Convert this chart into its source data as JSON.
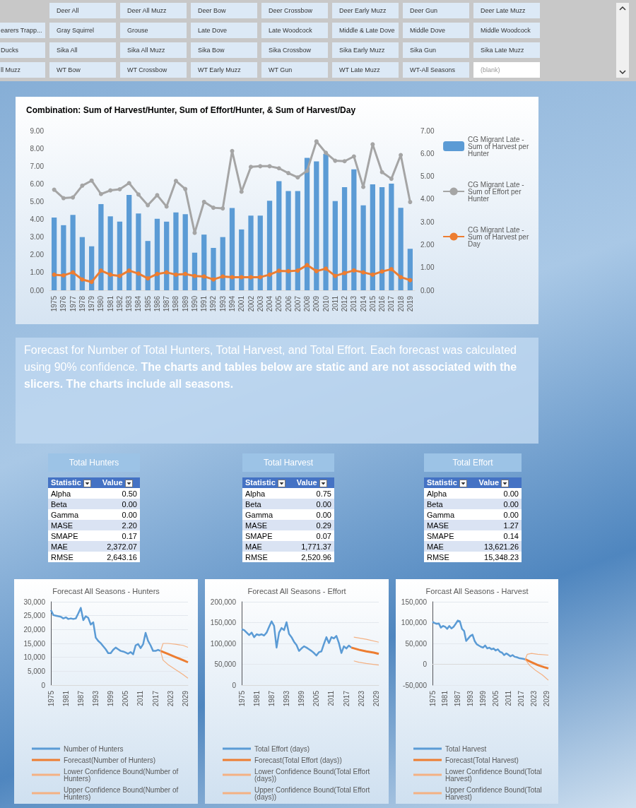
{
  "chart_data": [
    {
      "type": "other",
      "annotations": [
        "Deer All",
        "Deer All Muzz",
        "Deer Bow",
        "Deer Crossbow",
        "Deer Early Muzz",
        "Deer Gun",
        "Deer Late Muzz",
        "earers Trapp...",
        "Gray Squirrel",
        "Grouse",
        "Late Dove",
        "Late Woodcock",
        "Middle & Late Dove",
        "Middle Dove",
        "Middle Woodcock",
        "Ducks",
        "Sika All",
        "Sika All Muzz",
        "Sika Bow",
        "Sika Crossbow",
        "Sika Early Muzz",
        "Sika Gun",
        "Sika Late Muzz",
        "ll Muzz",
        "WT Bow",
        "WT Crossbow",
        "WT Early Muzz",
        "WT Gun",
        "WT Late Muzz",
        "WT-All Seasons",
        "(blank)"
      ]
    },
    {
      "type": "bar",
      "title": "Combination: Sum of Harvest/Hunter, Sum of Effort/Hunter, & Sum of Harvest/Day",
      "categories": [
        "1975",
        "1976",
        "1977",
        "1978",
        "1979",
        "1980",
        "1981",
        "1982",
        "1983",
        "1984",
        "1985",
        "1986",
        "1987",
        "1988",
        "1989",
        "1990",
        "1991",
        "1992",
        "1993",
        "1994",
        "2001",
        "2002",
        "2003",
        "2004",
        "2005",
        "2006",
        "2007",
        "2008",
        "2009",
        "2010",
        "2011",
        "2012",
        "2013",
        "2014",
        "2015",
        "2016",
        "2017",
        "2018",
        "2019"
      ],
      "series": [
        {
          "name": "CG Migrant Late - Sum of Harvest per Hunter",
          "type": "bar",
          "color": "#5b9bd5",
          "values": [
            4.1,
            3.67,
            4.25,
            3.0,
            2.48,
            4.86,
            4.17,
            3.87,
            5.38,
            4.33,
            2.78,
            4.03,
            3.87,
            4.39,
            4.29,
            2.12,
            3.14,
            2.39,
            3.0,
            4.64,
            3.43,
            4.21,
            4.21,
            5.05,
            6.15,
            5.6,
            5.6,
            7.47,
            7.27,
            7.69,
            5.03,
            5.81,
            6.82,
            4.79,
            5.97,
            5.81,
            6.01,
            4.65,
            2.34
          ]
        },
        {
          "name": "CG Migrant Late - Sum of Effort per Hunter",
          "type": "line",
          "axis": "y2",
          "marker": "circle",
          "color": "#a5a5a5",
          "values": [
            4.41,
            4.04,
            4.07,
            4.59,
            4.81,
            4.22,
            4.38,
            4.43,
            4.7,
            4.2,
            3.73,
            4.17,
            3.67,
            4.8,
            4.44,
            2.52,
            3.88,
            3.62,
            3.59,
            6.11,
            4.32,
            5.41,
            5.44,
            5.44,
            5.35,
            5.14,
            4.95,
            5.24,
            6.53,
            6.03,
            5.68,
            5.66,
            5.87,
            4.53,
            6.4,
            5.18,
            4.89,
            5.93,
            3.87
          ]
        },
        {
          "name": "CG Migrant Late - Sum of Harvest per Day",
          "type": "line",
          "marker": "circle",
          "color": "#ed7d31",
          "values": [
            0.88,
            0.84,
            1.01,
            0.61,
            0.47,
            1.11,
            0.88,
            0.81,
            1.11,
            0.94,
            0.67,
            0.92,
            1.01,
            0.88,
            0.92,
            0.81,
            0.78,
            0.61,
            0.78,
            0.74,
            0.74,
            0.74,
            0.74,
            0.88,
            1.1,
            1.08,
            1.11,
            1.42,
            1.08,
            1.22,
            0.81,
            0.97,
            1.12,
            1.01,
            0.88,
            1.06,
            1.19,
            0.74,
            0.57
          ]
        }
      ],
      "ylim": [
        0,
        9
      ],
      "yticks": [
        {
          "value": 0,
          "label": "0.00"
        },
        {
          "value": 1,
          "label": "1.00"
        },
        {
          "value": 2,
          "label": "2.00"
        },
        {
          "value": 3,
          "label": "3.00"
        },
        {
          "value": 4,
          "label": "4.00"
        },
        {
          "value": 5,
          "label": "5.00"
        },
        {
          "value": 6,
          "label": "6.00"
        },
        {
          "value": 7,
          "label": "7.00"
        },
        {
          "value": 8,
          "label": "8.00"
        },
        {
          "value": 9,
          "label": "9.00"
        }
      ],
      "y2lim": [
        0,
        7
      ],
      "y2ticks": [
        {
          "value": 0,
          "label": "0.00"
        },
        {
          "value": 1,
          "label": "1.00"
        },
        {
          "value": 2,
          "label": "2.00"
        },
        {
          "value": 3,
          "label": "3.00"
        },
        {
          "value": 4,
          "label": "4.00"
        },
        {
          "value": 5,
          "label": "5.00"
        },
        {
          "value": 6,
          "label": "6.00"
        },
        {
          "value": 7,
          "label": "7.00"
        }
      ],
      "legend": "right",
      "grid": false
    },
    {
      "type": "other",
      "annotations": [
        "Forecast for Number of Total Hunters, Total Harvest, and Total Effort. Each forecast was calculated using 90% confidence.",
        "The charts and tables below are static and are not associated with the slicers. The charts include all seasons."
      ]
    },
    {
      "type": "other",
      "title": "Total Hunters",
      "annotations": [
        "Statistic",
        "Value",
        "Alpha",
        "0.50",
        "Beta",
        "0.00",
        "Gamma",
        "0.00",
        "MASE",
        "2.20",
        "SMAPE",
        "0.17",
        "MAE",
        "2,372.07",
        "RMSE",
        "2,643.16"
      ]
    },
    {
      "type": "other",
      "title": "Total Harvest",
      "annotations": [
        "Statistic",
        "Value",
        "Alpha",
        "0.75",
        "Beta",
        "0.00",
        "Gamma",
        "0.00",
        "MASE",
        "0.29",
        "SMAPE",
        "0.07",
        "MAE",
        "1,771.37",
        "RMSE",
        "2,520.96"
      ]
    },
    {
      "type": "other",
      "title": "Total Effort",
      "annotations": [
        "Statistic",
        "Value",
        "Alpha",
        "0.00",
        "Beta",
        "0.00",
        "Gamma",
        "0.00",
        "MASE",
        "1.27",
        "SMAPE",
        "0.14",
        "MAE",
        "13,621.26",
        "RMSE",
        "15,348.23"
      ]
    },
    {
      "type": "line",
      "title": "Forecast All Seasons - Hunters",
      "xlim": [
        1975,
        2030
      ],
      "xticks": [
        1975,
        1981,
        1987,
        1993,
        1999,
        2005,
        2011,
        2017,
        2023,
        2029
      ],
      "ylim": [
        0,
        30000
      ],
      "yticks": [
        {
          "value": 0,
          "label": "0"
        },
        {
          "value": 5000,
          "label": "5,000"
        },
        {
          "value": 10000,
          "label": "10,000"
        },
        {
          "value": 15000,
          "label": "15,000"
        },
        {
          "value": 20000,
          "label": "20,000"
        },
        {
          "value": 25000,
          "label": "25,000"
        },
        {
          "value": 30000,
          "label": "30,000"
        }
      ],
      "grid": "y",
      "legend": "bottom",
      "series": [
        {
          "name": "Number of Hunters",
          "color": "#5b9bd5",
          "x": [
            1975,
            1976,
            1977,
            1978,
            1979,
            1980,
            1981,
            1982,
            1983,
            1984,
            1985,
            1986,
            1987,
            1988,
            1989,
            1990,
            1991,
            1992,
            1993,
            1994,
            1995,
            1996,
            1997,
            1998,
            1999,
            2000,
            2001,
            2002,
            2003,
            2004,
            2005,
            2006,
            2007,
            2008,
            2009,
            2010,
            2011,
            2012,
            2013,
            2014,
            2015,
            2016,
            2017,
            2018,
            2019
          ],
          "values": [
            27000,
            25200,
            25000,
            24800,
            24600,
            24000,
            24400,
            23800,
            24000,
            23800,
            24000,
            25800,
            27800,
            23400,
            24800,
            24200,
            21800,
            22600,
            17100,
            15900,
            15100,
            14000,
            12900,
            11500,
            11500,
            12700,
            13500,
            12900,
            12300,
            12100,
            11700,
            11300,
            11900,
            11100,
            14300,
            14800,
            13300,
            14700,
            18800,
            15900,
            14300,
            12300,
            12300,
            12700,
            12300
          ]
        },
        {
          "name": "Forecast(Number of Hunters)",
          "color": "#ed7d31",
          "x": [
            2019,
            2022,
            2025,
            2028,
            2030
          ],
          "values": [
            12300,
            11200,
            10100,
            9000,
            8200
          ]
        },
        {
          "name": "Lower Confidence Bound(Number of Hunters)",
          "color": "#f4b183",
          "x": [
            2019,
            2020,
            2022,
            2025,
            2028,
            2030
          ],
          "values": [
            12300,
            9000,
            7400,
            5600,
            3800,
            2500
          ]
        },
        {
          "name": "Upper Confidence Bound(Number of Hunters)",
          "color": "#f4b183",
          "x": [
            2019,
            2020,
            2022,
            2025,
            2028,
            2030
          ],
          "values": [
            12300,
            15000,
            15000,
            14700,
            14300,
            13600
          ]
        }
      ]
    },
    {
      "type": "line",
      "title": "Forecast All Seasons - Effort",
      "xlim": [
        1975,
        2030
      ],
      "xticks": [
        1975,
        1981,
        1987,
        1993,
        1999,
        2005,
        2011,
        2017,
        2023,
        2029
      ],
      "ylim": [
        0,
        200000
      ],
      "yticks": [
        {
          "value": 0,
          "label": "0"
        },
        {
          "value": 50000,
          "label": "50,000"
        },
        {
          "value": 100000,
          "label": "100,000"
        },
        {
          "value": 150000,
          "label": "150,000"
        },
        {
          "value": 200000,
          "label": "200,000"
        }
      ],
      "grid": "y",
      "legend": "bottom",
      "series": [
        {
          "name": "Total Effort (days)",
          "color": "#5b9bd5",
          "x": [
            1975,
            1976,
            1977,
            1978,
            1979,
            1980,
            1981,
            1982,
            1983,
            1984,
            1985,
            1986,
            1987,
            1988,
            1989,
            1990,
            1991,
            1992,
            1993,
            1994,
            1995,
            1996,
            1997,
            1998,
            1999,
            2000,
            2001,
            2002,
            2003,
            2004,
            2005,
            2006,
            2007,
            2008,
            2009,
            2010,
            2011,
            2012,
            2013,
            2014,
            2015,
            2016,
            2017,
            2018,
            2019
          ],
          "values": [
            134000,
            132000,
            126000,
            120000,
            126000,
            115000,
            122000,
            120000,
            122000,
            119000,
            126000,
            140000,
            153000,
            142000,
            90000,
            126000,
            137000,
            132000,
            151000,
            123000,
            115000,
            104000,
            96000,
            82000,
            88000,
            93000,
            90000,
            86000,
            82000,
            77000,
            71000,
            79000,
            81000,
            99000,
            115000,
            101000,
            115000,
            112000,
            118000,
            101000,
            77000,
            93000,
            88000,
            95000,
            90000
          ]
        },
        {
          "name": "Forecast(Total Effort (days))",
          "color": "#ed7d31",
          "x": [
            2019,
            2022,
            2025,
            2028,
            2030
          ],
          "values": [
            90000,
            85000,
            81000,
            78000,
            75000
          ]
        },
        {
          "name": "Lower Confidence Bound(Total Effort (days))",
          "color": "#f4b183",
          "x": [
            2020,
            2022,
            2025,
            2030
          ],
          "values": [
            58000,
            55000,
            52000,
            48000
          ]
        },
        {
          "name": "Upper Confidence Bound(Total Effort (days))",
          "color": "#f4b183",
          "x": [
            2020,
            2025,
            2030
          ],
          "values": [
            115000,
            110000,
            103000
          ]
        }
      ]
    },
    {
      "type": "line",
      "title": "Forcast All Seasons - Harvest",
      "xlim": [
        1975,
        2030
      ],
      "xticks": [
        1975,
        1981,
        1987,
        1993,
        1999,
        2005,
        2011,
        2017,
        2023,
        2029
      ],
      "ylim": [
        -50000,
        150000
      ],
      "yticks": [
        {
          "value": -50000,
          "label": "-50,000"
        },
        {
          "value": 0,
          "label": "0"
        },
        {
          "value": 50000,
          "label": "50,000"
        },
        {
          "value": 100000,
          "label": "100,000"
        },
        {
          "value": 150000,
          "label": "150,000"
        }
      ],
      "grid": "y",
      "legend": "bottom",
      "series": [
        {
          "name": "Total Harvest",
          "color": "#5b9bd5",
          "x": [
            1975,
            1976,
            1977,
            1978,
            1979,
            1980,
            1981,
            1982,
            1983,
            1984,
            1985,
            1986,
            1987,
            1988,
            1989,
            1990,
            1991,
            1992,
            1993,
            1994,
            1995,
            1996,
            1997,
            1998,
            1999,
            2000,
            2001,
            2002,
            2003,
            2004,
            2005,
            2006,
            2007,
            2008,
            2009,
            2010,
            2011,
            2012,
            2013,
            2014,
            2015,
            2016,
            2017,
            2018,
            2019
          ],
          "values": [
            102000,
            99000,
            97000,
            98000,
            88000,
            92000,
            90000,
            85000,
            92000,
            86000,
            90000,
            97000,
            105000,
            103000,
            85000,
            80000,
            56000,
            62000,
            68000,
            71000,
            56000,
            48000,
            45000,
            42000,
            40000,
            45000,
            38000,
            40000,
            36000,
            38000,
            33000,
            36000,
            30000,
            28000,
            22000,
            26000,
            23000,
            19000,
            22000,
            18000,
            17000,
            15000,
            14000,
            13000,
            12000
          ]
        },
        {
          "name": "Forecast(Total Harvest)",
          "color": "#ed7d31",
          "x": [
            2019,
            2022,
            2025,
            2028,
            2030
          ],
          "values": [
            12000,
            5000,
            -2000,
            -7000,
            -10000
          ]
        },
        {
          "name": "Lower Confidence Bound(Total Harvest)",
          "color": "#f4b183",
          "x": [
            2019,
            2021,
            2024,
            2027,
            2030
          ],
          "values": [
            12000,
            -2000,
            -15000,
            -25000,
            -38000
          ]
        },
        {
          "name": "Upper Confidence Bound(Total Harvest)",
          "color": "#f4b183",
          "x": [
            2019,
            2020,
            2022,
            2025,
            2030
          ],
          "values": [
            12000,
            24000,
            26000,
            24000,
            22000
          ]
        }
      ]
    }
  ]
}
